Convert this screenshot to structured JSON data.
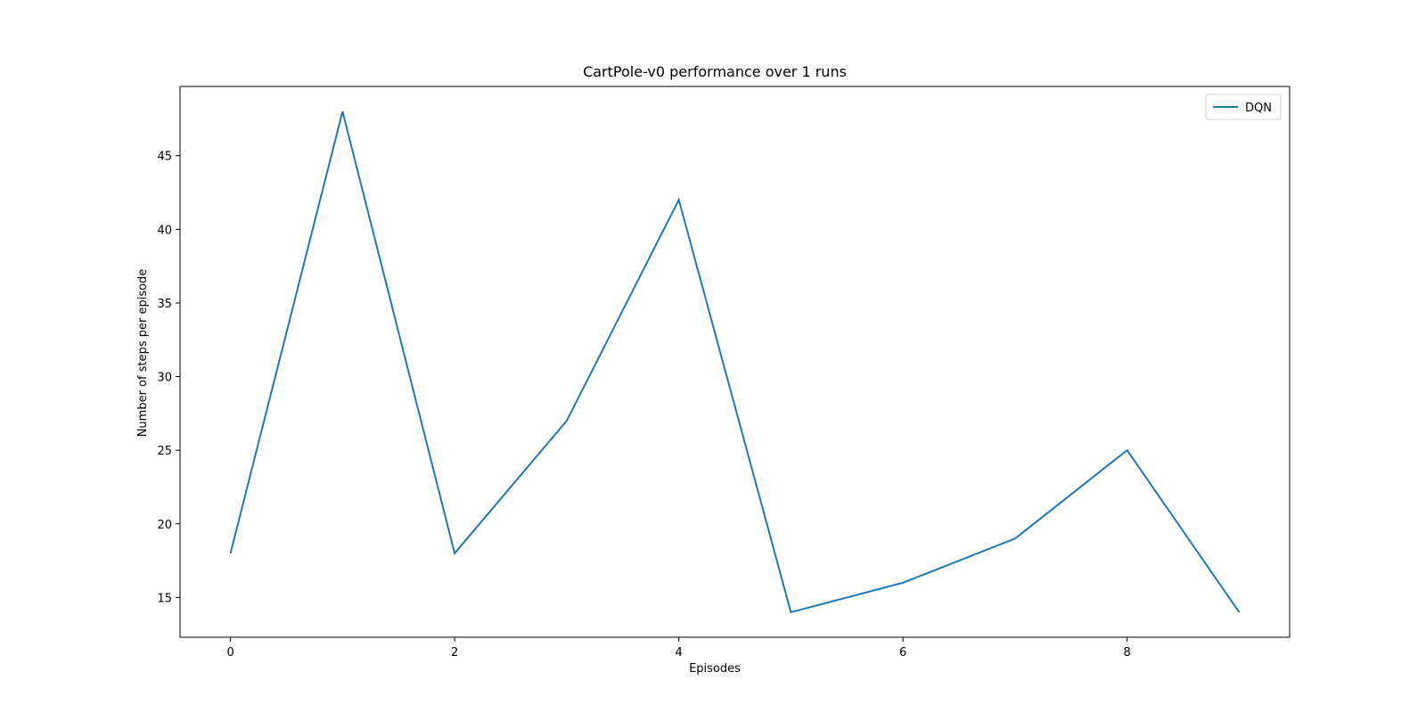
{
  "chart_data": {
    "type": "line",
    "title": "CartPole-v0 performance over 1 runs",
    "xlabel": "Episodes",
    "ylabel": "Number of steps per episode",
    "xlim": [
      -0.45,
      9.45
    ],
    "ylim": [
      12.3,
      49.7
    ],
    "xticks": [
      0,
      2,
      4,
      6,
      8
    ],
    "yticks": [
      15,
      20,
      25,
      30,
      35,
      40,
      45
    ],
    "x": [
      0,
      1,
      2,
      3,
      4,
      5,
      6,
      7,
      8,
      9
    ],
    "series": [
      {
        "name": "DQN",
        "values": [
          18,
          48,
          18,
          27,
          42,
          14,
          16,
          19,
          25,
          14
        ],
        "color": "#1f77b4"
      }
    ],
    "legend": "top-right",
    "grid": false
  }
}
